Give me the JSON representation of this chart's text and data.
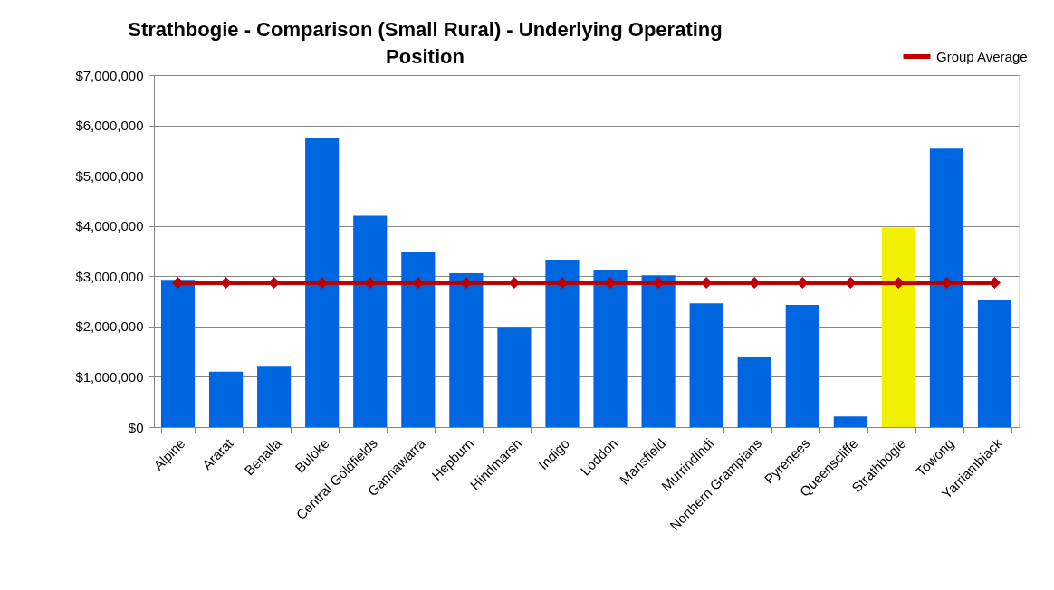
{
  "chart_data": {
    "type": "bar",
    "title": "Strathbogie - Comparison (Small Rural) - Underlying Operating Position",
    "categories": [
      "Alpine",
      "Ararat",
      "Benalla",
      "Buloke",
      "Central Goldfields",
      "Gannawarra",
      "Hepburn",
      "Hindmarsh",
      "Indigo",
      "Loddon",
      "Mansfield",
      "Murrindindi",
      "Northern Grampians",
      "Pyrenees",
      "Queenscliffe",
      "Strathbogie",
      "Towong",
      "Yarriambiack"
    ],
    "series": [
      {
        "colors": [
          "#0066e0",
          "#0066e0",
          "#0066e0",
          "#0066e0",
          "#0066e0",
          "#0066e0",
          "#0066e0",
          "#0066e0",
          "#0066e0",
          "#0066e0",
          "#0066e0",
          "#0066e0",
          "#0066e0",
          "#0066e0",
          "#0066e0",
          "#f0f000",
          "#0066e0",
          "#0066e0"
        ],
        "values": [
          2930000,
          1100000,
          1200000,
          5740000,
          4200000,
          3490000,
          3060000,
          1990000,
          3330000,
          3130000,
          3020000,
          2460000,
          1400000,
          2430000,
          210000,
          3970000,
          5540000,
          2530000
        ]
      },
      {
        "type": "line",
        "name": "Group Average",
        "color": "#c00000",
        "marker": "diamond",
        "line_style": "solid",
        "values": [
          2870000,
          2870000,
          2870000,
          2870000,
          2870000,
          2870000,
          2870000,
          2870000,
          2870000,
          2870000,
          2870000,
          2870000,
          2870000,
          2870000,
          2870000,
          2870000,
          2870000,
          2870000
        ]
      }
    ],
    "ylim": [
      0,
      7000000
    ],
    "yticks": [
      {
        "value": 0,
        "label": "$0"
      },
      {
        "value": 1000000,
        "label": "$1,000,000"
      },
      {
        "value": 2000000,
        "label": "$2,000,000"
      },
      {
        "value": 3000000,
        "label": "$3,000,000"
      },
      {
        "value": 4000000,
        "label": "$4,000,000"
      },
      {
        "value": 5000000,
        "label": "$5,000,000"
      },
      {
        "value": 6000000,
        "label": "$6,000,000"
      },
      {
        "value": 7000000,
        "label": "$7,000,000"
      }
    ],
    "grid": "y",
    "legend": "top right"
  }
}
